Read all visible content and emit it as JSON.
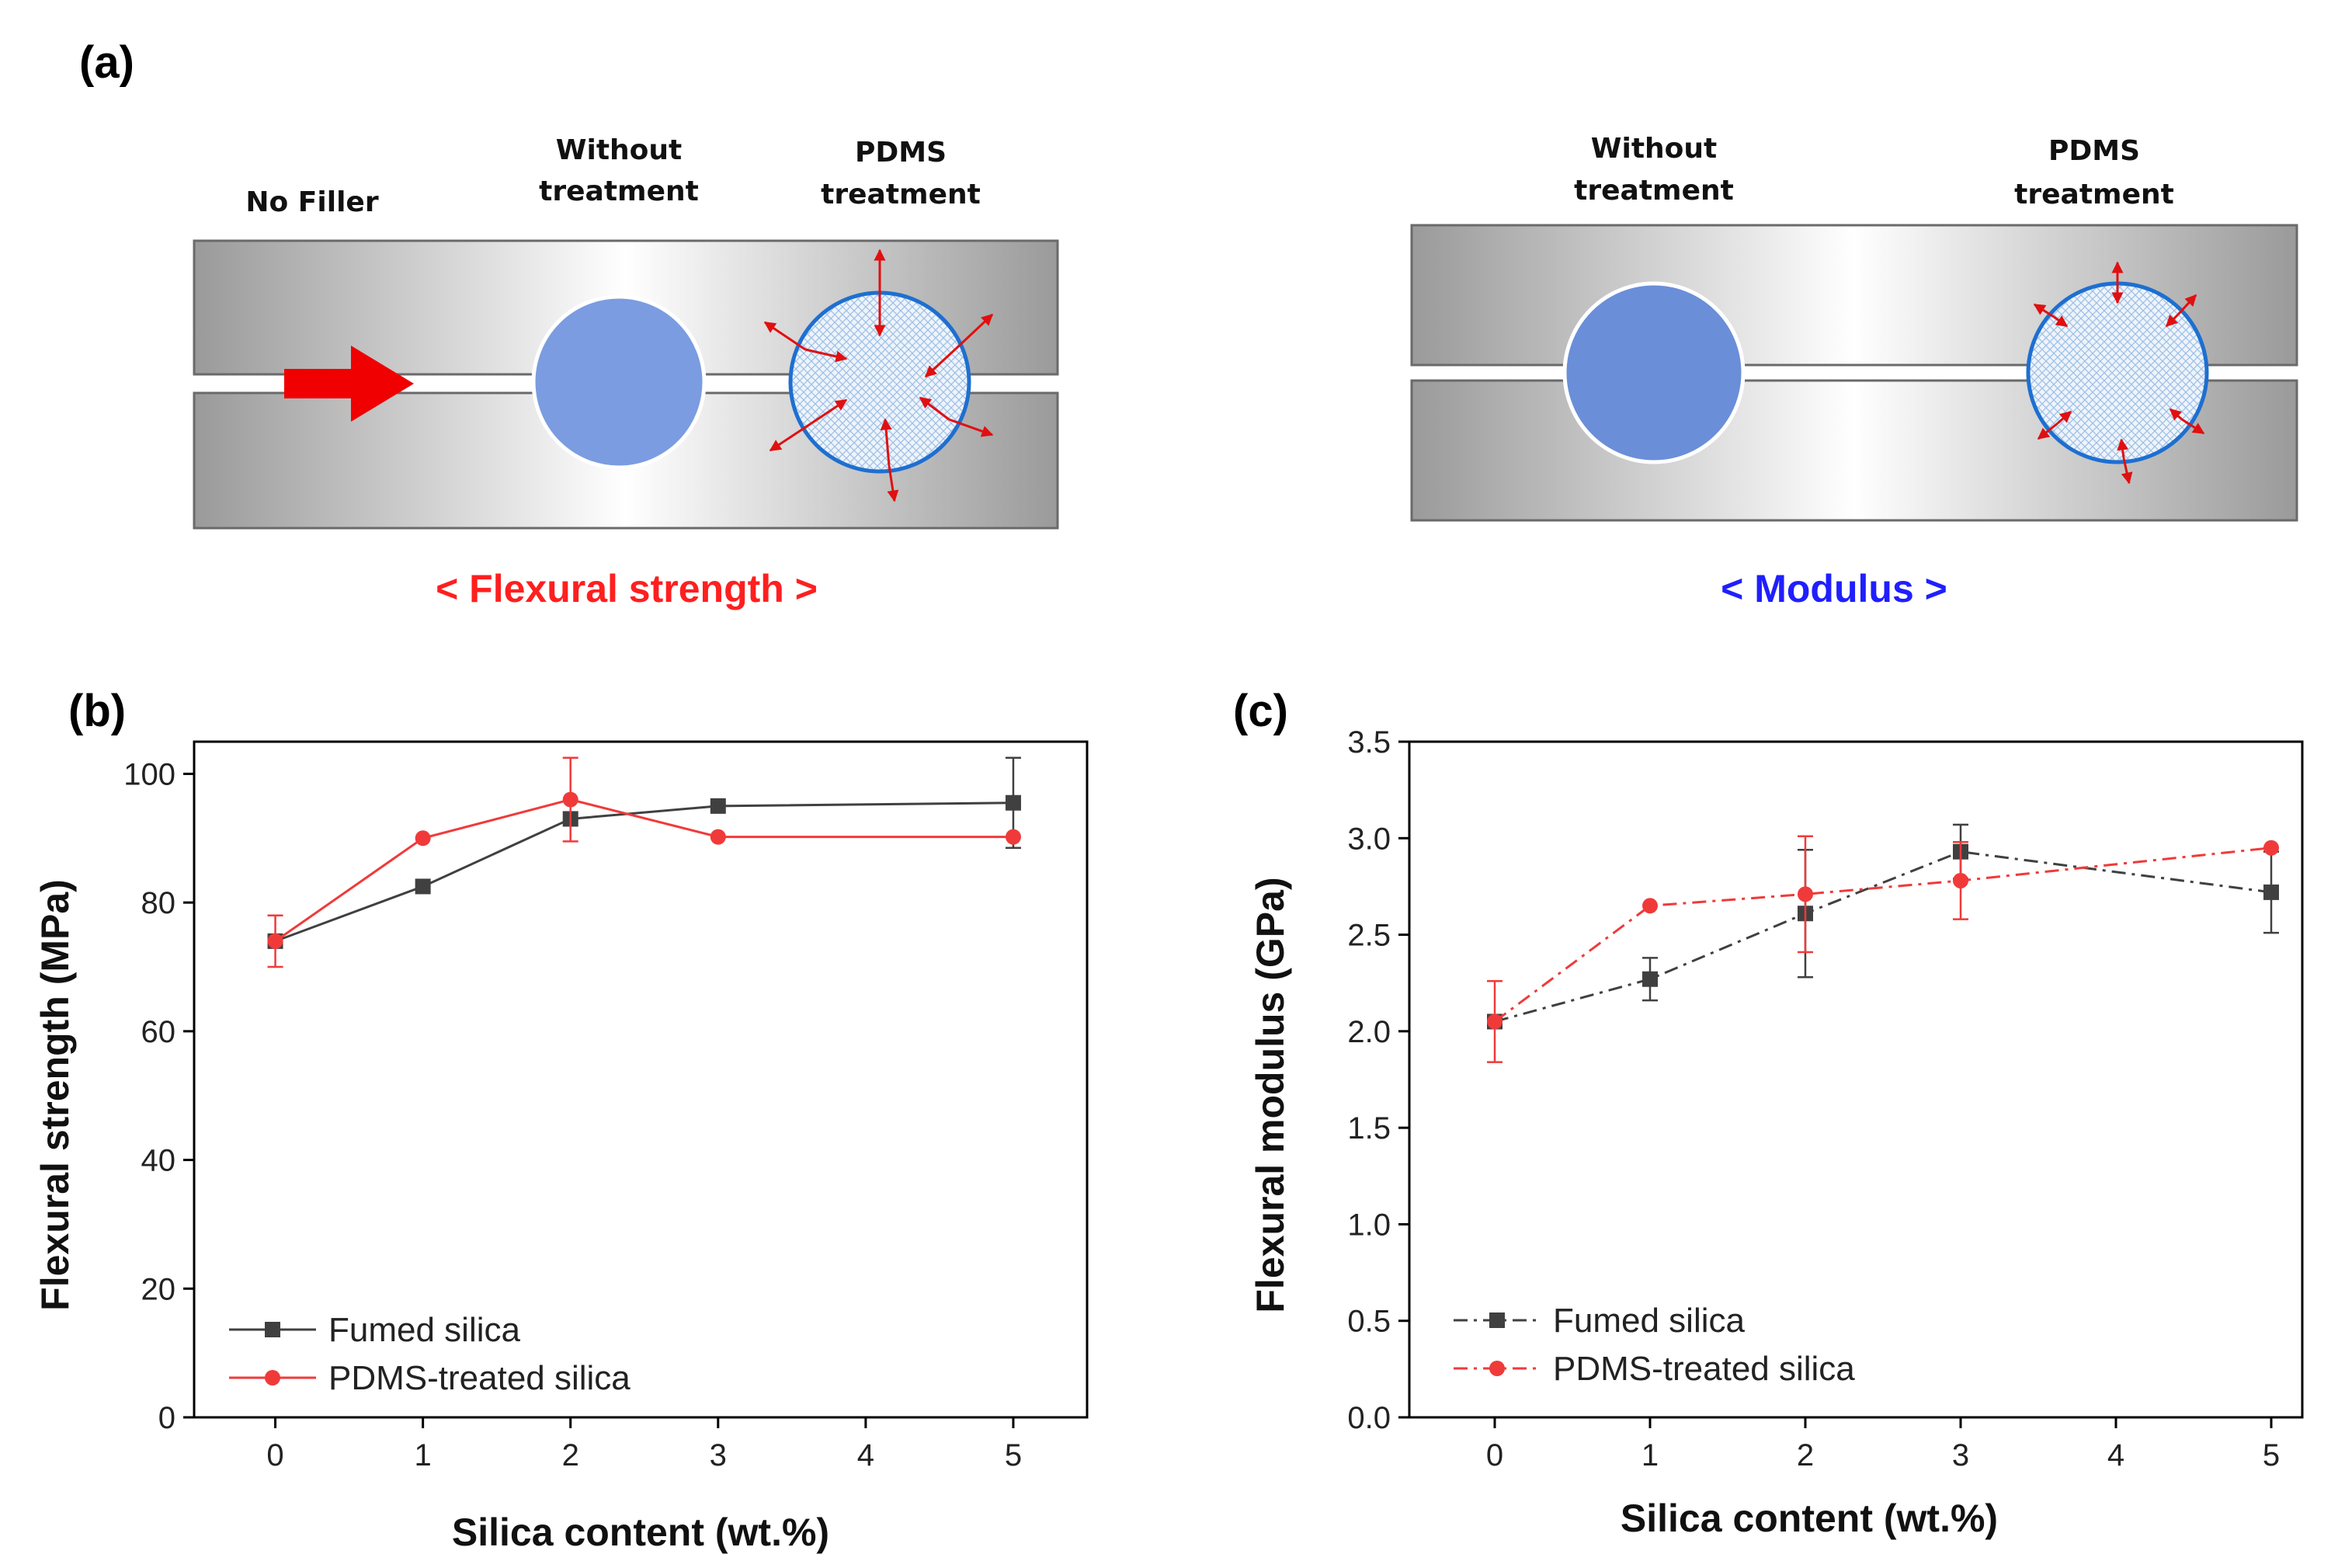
{
  "colors": {
    "fumed": "#404040",
    "pdms": "#f03a3a",
    "red_caption": "#ff1f1f",
    "blue_caption": "#1f1fff",
    "filler_blue": "#7b9ce0"
  },
  "diagram": {
    "label": "(a)",
    "left": {
      "labels": {
        "no_filler": "No Filler",
        "without_1": "Without",
        "without_2": "treatment",
        "pdms_1": "PDMS",
        "pdms_2": "treatment"
      },
      "caption": "< Flexural strength >"
    },
    "right": {
      "labels": {
        "without_1": "Without",
        "without_2": "treatment",
        "pdms_1": "PDMS",
        "pdms_2": "treatment"
      },
      "caption": "< Modulus >"
    }
  },
  "chart_data": [
    {
      "label": "(b)",
      "type": "line",
      "xlabel": "Silica content (wt.%)",
      "ylabel": "Flexural strength (MPa)",
      "xlim": [
        -0.55,
        5.5
      ],
      "ylim": [
        0,
        105
      ],
      "xticks": [
        0,
        1,
        2,
        3,
        4,
        5
      ],
      "yticks": [
        0,
        20,
        40,
        60,
        80,
        100
      ],
      "tick_decimals": 0,
      "legend_position": "bottom-left",
      "series": [
        {
          "name": "Fumed silica",
          "line_style": "solid",
          "marker": "square",
          "color": "#404040",
          "x": [
            0,
            1,
            2,
            3,
            5
          ],
          "y": [
            74,
            82.5,
            93,
            95,
            95.5
          ],
          "err": [
            0,
            0,
            0,
            0,
            7
          ]
        },
        {
          "name": "PDMS-treated silica",
          "line_style": "solid",
          "marker": "circle",
          "color": "#f03a3a",
          "x": [
            0,
            1,
            2,
            3,
            5
          ],
          "y": [
            74,
            90,
            96,
            90.2,
            90.2
          ],
          "err": [
            4,
            0,
            6.5,
            0,
            0
          ]
        }
      ]
    },
    {
      "label": "(c)",
      "type": "line",
      "xlabel": "Silica content (wt.%)",
      "ylabel": "Flexural modulus (GPa)",
      "xlim": [
        -0.55,
        5.2
      ],
      "ylim": [
        0,
        3.5
      ],
      "xticks": [
        0,
        1,
        2,
        3,
        4,
        5
      ],
      "yticks": [
        0.0,
        0.5,
        1.0,
        1.5,
        2.0,
        2.5,
        3.0,
        3.5
      ],
      "tick_decimals": 1,
      "legend_position": "bottom-left",
      "series": [
        {
          "name": "Fumed silica",
          "line_style": "dash-dot",
          "marker": "square",
          "color": "#404040",
          "x": [
            0,
            1,
            2,
            3,
            5
          ],
          "y": [
            2.05,
            2.27,
            2.61,
            2.93,
            2.72
          ],
          "err": [
            0,
            0.11,
            0.33,
            0.14,
            0.21
          ]
        },
        {
          "name": "PDMS-treated silica",
          "line_style": "dash-dot",
          "marker": "circle",
          "color": "#f03a3a",
          "x": [
            0,
            1,
            2,
            3,
            5
          ],
          "y": [
            2.05,
            2.65,
            2.71,
            2.78,
            2.95
          ],
          "err": [
            0.21,
            0,
            0.3,
            0.2,
            0
          ]
        }
      ]
    }
  ]
}
